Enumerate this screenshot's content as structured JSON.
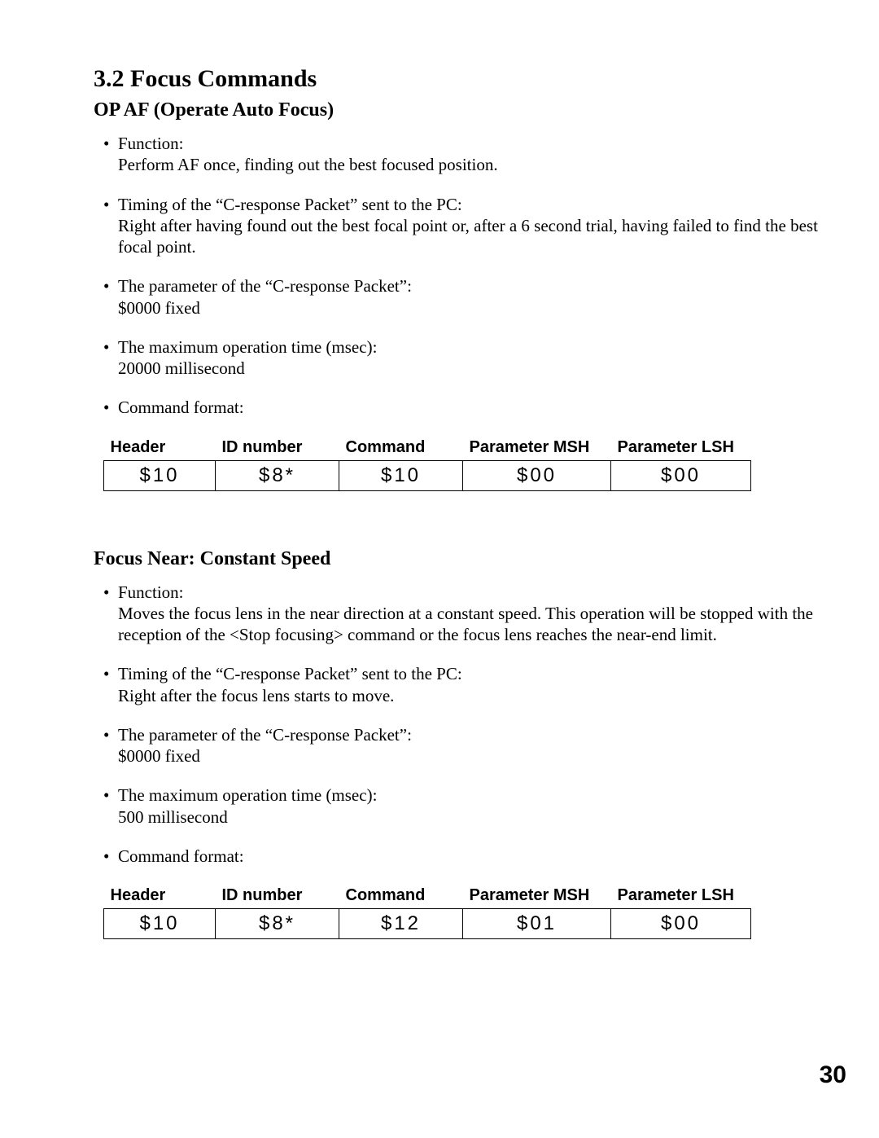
{
  "heading": "3.2 Focus Commands",
  "pageNumber": "30",
  "tableHeaders": {
    "h1": "Header",
    "h2": "ID number",
    "h3": "Command",
    "h4": "Parameter MSH",
    "h5": "Parameter LSH"
  },
  "section1": {
    "title": "OP AF (Operate Auto Focus)",
    "items": [
      {
        "label": "Function:",
        "desc": "Perform AF once, finding out the best focused position."
      },
      {
        "label": "Timing of the “C-response Packet” sent to the PC:",
        "desc": "Right after having found out the best focal point or, after a 6 second trial, having failed to find the best focal point."
      },
      {
        "label": "The parameter of the “C-response Packet”:",
        "desc": "$0000  fixed"
      },
      {
        "label": "The maximum operation time (msec):",
        "desc": "20000 millisecond"
      },
      {
        "label": "Command format:",
        "desc": ""
      }
    ],
    "row": {
      "c1": "$10",
      "c2": "$8*",
      "c3": "$10",
      "c4": "$00",
      "c5": "$00"
    }
  },
  "section2": {
    "title": "Focus Near: Constant Speed",
    "items": [
      {
        "label": "Function:",
        "desc": "Moves the focus lens in the near direction at a constant speed.  This operation will be stopped with the reception of the <Stop focusing> command or the focus lens reaches the near-end limit."
      },
      {
        "label": "Timing of the “C-response Packet” sent to the PC:",
        "desc": "Right after the focus lens starts to move."
      },
      {
        "label": "The parameter of the “C-response Packet”:",
        "desc": "$0000  fixed"
      },
      {
        "label": "The maximum operation time (msec):",
        "desc": "500 millisecond"
      },
      {
        "label": "Command format:",
        "desc": ""
      }
    ],
    "row": {
      "c1": "$10",
      "c2": "$8*",
      "c3": "$12",
      "c4": "$01",
      "c5": "$00"
    }
  }
}
